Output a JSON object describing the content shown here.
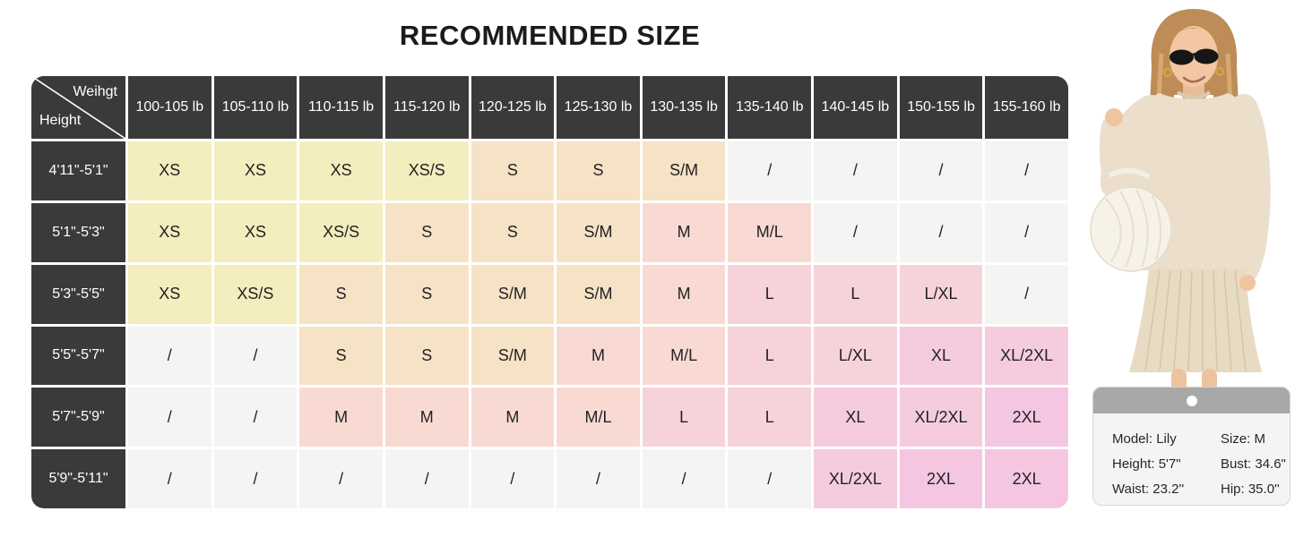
{
  "title": "RECOMMENDED SIZE",
  "chart_data": {
    "type": "table",
    "title": "RECOMMENDED SIZE",
    "x_axis_label": "Weihgt",
    "y_axis_label": "Height",
    "columns": [
      "100-105 lb",
      "105-110 lb",
      "110-115 lb",
      "115-120 lb",
      "120-125 lb",
      "125-130 lb",
      "130-135 lb",
      "135-140 lb",
      "140-145 lb",
      "150-155 lb",
      "155-160 lb"
    ],
    "rows": [
      {
        "label": "4'11\"-5'1\"",
        "values": [
          "XS",
          "XS",
          "XS",
          "XS/S",
          "S",
          "S",
          "S/M",
          "/",
          "/",
          "/",
          "/"
        ]
      },
      {
        "label": "5'1\"-5'3\"",
        "values": [
          "XS",
          "XS",
          "XS/S",
          "S",
          "S",
          "S/M",
          "M",
          "M/L",
          "/",
          "/",
          "/"
        ]
      },
      {
        "label": "5'3\"-5'5\"",
        "values": [
          "XS",
          "XS/S",
          "S",
          "S",
          "S/M",
          "S/M",
          "M",
          "L",
          "L",
          "L/XL",
          "/"
        ]
      },
      {
        "label": "5'5\"-5'7\"",
        "values": [
          "/",
          "/",
          "S",
          "S",
          "S/M",
          "M",
          "M/L",
          "L",
          "L/XL",
          "XL",
          "XL/2XL"
        ]
      },
      {
        "label": "5'7\"-5'9\"",
        "values": [
          "/",
          "/",
          "M",
          "M",
          "M",
          "M/L",
          "L",
          "L",
          "XL",
          "XL/2XL",
          "2XL"
        ]
      },
      {
        "label": "5'9\"-5'11\"",
        "values": [
          "/",
          "/",
          "/",
          "/",
          "/",
          "/",
          "/",
          "/",
          "XL/2XL",
          "2XL",
          "2XL"
        ]
      }
    ]
  },
  "colors": {
    "XS": "#f4edbe",
    "S": "#f6e2c5",
    "M": "#f8dad3",
    "L": "#f6d3db",
    "XL": "#f5ccde",
    "2XL": "#f4c6e1",
    "slash": "#f4f4f2",
    "header_bg": "#3a3a3a",
    "header_text": "#ffffff",
    "cell_text": "#222222"
  },
  "model_card": {
    "left_lines": [
      "Model: Lily",
      "Height: 5'7\"",
      "Waist: 23.2''"
    ],
    "right_lines": [
      "Size: M",
      "Bust: 34.6\"",
      "Hip: 35.0''"
    ]
  }
}
